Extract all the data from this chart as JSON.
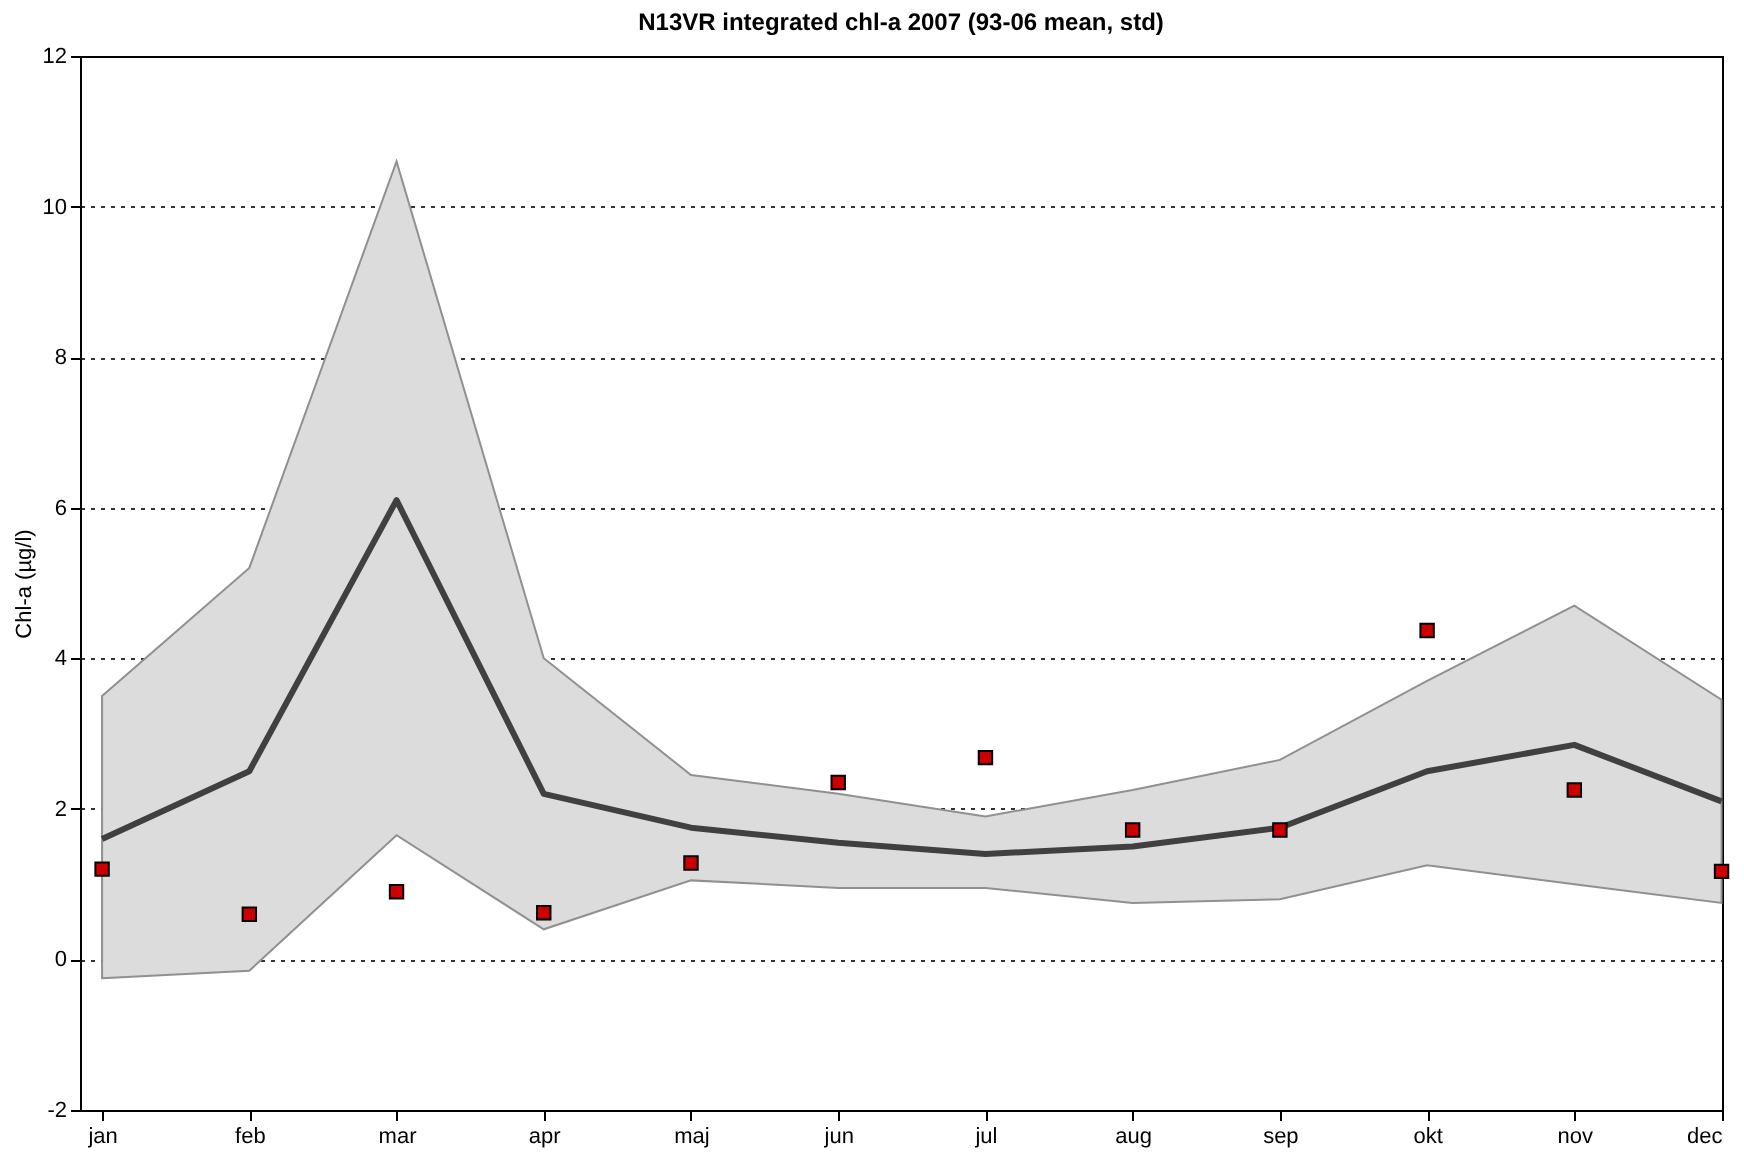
{
  "chart_data": {
    "type": "line",
    "title": "N13VR integrated chl-a 2007 (93-06 mean, std)",
    "ylabel": "Chl-a (µg/l)",
    "categories": [
      "jan",
      "feb",
      "mar",
      "apr",
      "maj",
      "jun",
      "jul",
      "aug",
      "sep",
      "okt",
      "nov",
      "dec"
    ],
    "ylim": [
      -2,
      12
    ],
    "yticks": [
      -2,
      0,
      2,
      4,
      6,
      8,
      10,
      12
    ],
    "grid": "y",
    "series": [
      {
        "color": "#404040",
        "values": [
          1.6,
          2.5,
          6.1,
          2.2,
          1.75,
          1.55,
          1.4,
          1.5,
          1.75,
          2.5,
          2.85,
          2.1
        ],
        "lower": [
          -0.25,
          -0.15,
          1.65,
          0.4,
          1.05,
          0.95,
          0.95,
          0.75,
          0.8,
          1.25,
          1.0,
          0.75
        ],
        "upper": [
          3.5,
          5.2,
          10.6,
          4.0,
          2.45,
          2.2,
          1.9,
          2.25,
          2.65,
          3.7,
          4.7,
          3.45
        ],
        "line_style": "solid"
      },
      {
        "type": "scatter",
        "color": "#cc0000",
        "x": [
          "jan",
          "feb",
          "mar",
          "apr",
          "maj",
          "jun",
          "jul",
          "aug",
          "sep",
          "okt",
          "nov",
          "dec"
        ],
        "values": [
          1.2,
          0.6,
          0.9,
          0.62,
          1.28,
          2.35,
          2.68,
          1.72,
          1.72,
          4.37,
          2.25,
          1.17
        ],
        "marker": "square"
      }
    ]
  }
}
